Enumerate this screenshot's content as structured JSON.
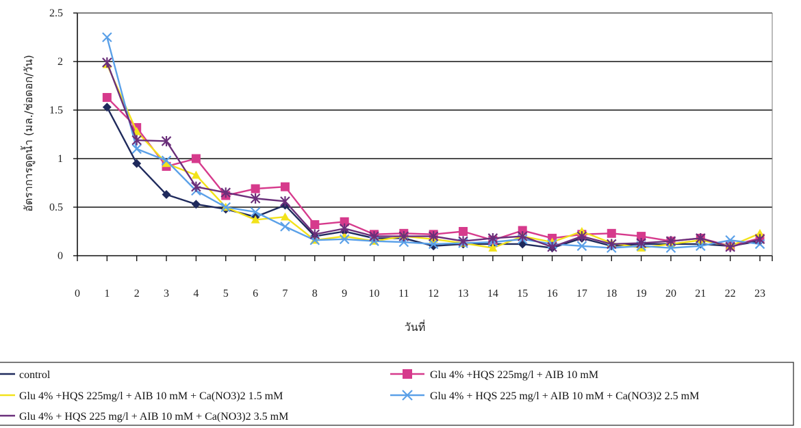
{
  "chart_data": {
    "type": "line",
    "title": "",
    "xlabel": "วันที่",
    "ylabel": "อัตราการดูดน้ำ (มล./ช่อดอก/วัน)",
    "x": [
      1,
      2,
      3,
      4,
      5,
      6,
      7,
      8,
      9,
      10,
      11,
      12,
      13,
      14,
      15,
      16,
      17,
      18,
      19,
      20,
      21,
      22,
      23
    ],
    "x_ticks": [
      "0",
      "1",
      "2",
      "3",
      "4",
      "5",
      "6",
      "7",
      "8",
      "9",
      "10",
      "11",
      "12",
      "13",
      "14",
      "15",
      "16",
      "17",
      "18",
      "19",
      "20",
      "21",
      "22",
      "23"
    ],
    "xlim": [
      0,
      23
    ],
    "ylim": [
      0,
      2.5
    ],
    "y_ticks": [
      "0",
      "0.5",
      "1",
      "1.5",
      "2",
      "2.5"
    ],
    "grid": true,
    "legend_position": "bottom",
    "series": [
      {
        "name": "control",
        "color": "#1f2a5c",
        "marker": "diamond",
        "values": [
          1.53,
          0.95,
          0.63,
          0.53,
          0.48,
          0.4,
          0.52,
          0.2,
          0.25,
          0.18,
          0.18,
          0.1,
          0.12,
          0.12,
          0.12,
          0.08,
          0.18,
          0.1,
          0.12,
          0.12,
          0.12,
          0.1,
          0.15
        ]
      },
      {
        "name": "Glu 4% +HQS 225mg/l + AIB 10 mM",
        "color": "#d63a8c",
        "marker": "square",
        "values": [
          1.63,
          1.32,
          0.92,
          1.0,
          0.62,
          0.69,
          0.71,
          0.32,
          0.35,
          0.22,
          0.23,
          0.22,
          0.25,
          0.16,
          0.26,
          0.18,
          0.22,
          0.23,
          0.2,
          0.15,
          0.18,
          0.1,
          0.18
        ]
      },
      {
        "name": "Glu 4% +HQS 225mg/l + AIB 10 mM + Ca(NO3)2 1.5 mM",
        "color": "#f2e21a",
        "marker": "triangle",
        "values": [
          1.97,
          1.28,
          0.95,
          0.83,
          0.5,
          0.37,
          0.4,
          0.16,
          0.2,
          0.15,
          0.2,
          0.17,
          0.13,
          0.08,
          0.2,
          0.14,
          0.25,
          0.13,
          0.08,
          0.12,
          0.16,
          0.1,
          0.23
        ]
      },
      {
        "name": "Glu 4% + HQS 225 mg/l + AIB 10 mM + Ca(NO3)2 2.5 mM",
        "color": "#5aa0e8",
        "marker": "x",
        "values": [
          2.25,
          1.1,
          0.98,
          0.67,
          0.5,
          0.45,
          0.3,
          0.16,
          0.17,
          0.15,
          0.14,
          0.12,
          0.13,
          0.14,
          0.17,
          0.12,
          0.1,
          0.08,
          0.1,
          0.08,
          0.1,
          0.16,
          0.12
        ]
      },
      {
        "name": "Glu 4% + HQS 225 mg/l + AIB 10 mM + Ca(NO3)2 3.5 mM",
        "color": "#6a2f7a",
        "marker": "star",
        "values": [
          1.99,
          1.19,
          1.18,
          0.71,
          0.65,
          0.59,
          0.56,
          0.22,
          0.28,
          0.2,
          0.2,
          0.2,
          0.15,
          0.18,
          0.2,
          0.09,
          0.2,
          0.12,
          0.13,
          0.15,
          0.18,
          0.09,
          0.17
        ]
      }
    ]
  }
}
